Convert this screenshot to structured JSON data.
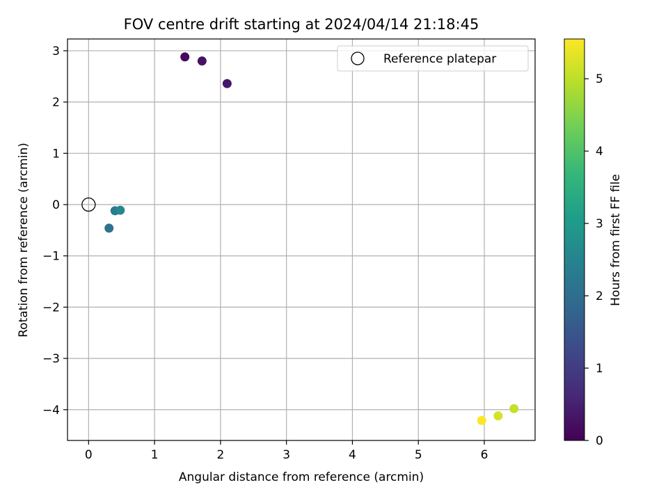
{
  "chart_data": {
    "type": "scatter",
    "title": "FOV centre drift starting at 2024/04/14 21:18:45",
    "xlabel": "Angular distance from reference (arcmin)",
    "ylabel": "Rotation from reference (arcmin)",
    "xlim": [
      -0.32,
      6.77
    ],
    "ylim": [
      -4.6,
      3.23
    ],
    "xticks": [
      0,
      1,
      2,
      3,
      4,
      5,
      6
    ],
    "yticks": [
      3,
      2,
      1,
      0,
      -1,
      -2,
      -3,
      -4
    ],
    "grid": true,
    "legend": {
      "placement": "top-right",
      "entries": [
        "Reference platepar"
      ]
    },
    "reference_point": {
      "name": "Reference platepar",
      "x": 0,
      "y": 0
    },
    "series": [
      {
        "points": [
          {
            "x": 1.46,
            "y": 2.88,
            "hours": 0.15
          },
          {
            "x": 1.72,
            "y": 2.8,
            "hours": 0.25
          },
          {
            "x": 2.1,
            "y": 2.36,
            "hours": 0.35
          },
          {
            "x": 0.31,
            "y": -0.46,
            "hours": 2.1
          },
          {
            "x": 0.4,
            "y": -0.12,
            "hours": 2.3
          },
          {
            "x": 0.48,
            "y": -0.11,
            "hours": 2.6
          },
          {
            "x": 5.96,
            "y": -4.21,
            "hours": 5.55
          },
          {
            "x": 6.21,
            "y": -4.12,
            "hours": 5.2
          },
          {
            "x": 6.45,
            "y": -3.98,
            "hours": 5.05
          }
        ]
      }
    ],
    "colorbar": {
      "label": "Hours from first FF file",
      "range": [
        0,
        5.55
      ],
      "ticks": [
        0,
        1,
        2,
        3,
        4,
        5
      ],
      "colormap": "viridis",
      "stops": [
        "#440154",
        "#482878",
        "#3e4989",
        "#31688e",
        "#26828e",
        "#1f9e89",
        "#35b779",
        "#6ece58",
        "#b5de2b",
        "#fde725"
      ]
    }
  }
}
